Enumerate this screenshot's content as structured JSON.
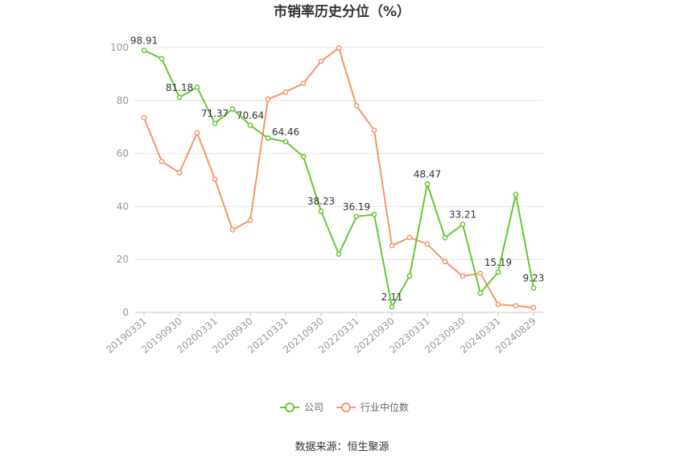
{
  "chart_data": {
    "type": "line",
    "title": "市销率历史分位（%）",
    "xlabel": "",
    "ylabel": "",
    "ylim": [
      0,
      100
    ],
    "yticks": [
      0,
      20,
      40,
      60,
      80,
      100
    ],
    "x": [
      "20190331",
      "20190630",
      "20190930",
      "20191231",
      "20200331",
      "20200630",
      "20200930",
      "20201231",
      "20210331",
      "20210630",
      "20210930",
      "20211231",
      "20220331",
      "20220630",
      "20220930",
      "20221231",
      "20230331",
      "20230630",
      "20230930",
      "20231231",
      "20240331",
      "20240630",
      "20240829"
    ],
    "x_tick_labels": [
      "20190331",
      "20190930",
      "20200331",
      "20200930",
      "20210331",
      "20210930",
      "20220331",
      "20220930",
      "20230331",
      "20230930",
      "20240331",
      "20240829"
    ],
    "series": [
      {
        "name": "公司",
        "color": "#66c735",
        "values": [
          98.91,
          95.8,
          81.18,
          85.0,
          71.37,
          76.8,
          70.64,
          65.8,
          64.46,
          58.8,
          38.23,
          22.0,
          36.19,
          37.0,
          2.11,
          13.8,
          48.47,
          28.2,
          33.21,
          7.3,
          15.19,
          44.5,
          9.23
        ],
        "data_labels": {
          "0": "98.91",
          "2": "81.18",
          "4": "71.37",
          "6": "70.64",
          "8": "64.46",
          "10": "38.23",
          "12": "36.19",
          "14": "2.11",
          "16": "48.47",
          "18": "33.21",
          "20": "15.19",
          "22": "9.23"
        }
      },
      {
        "name": "行业中位数",
        "color": "#f5956a",
        "values": [
          73.5,
          57.0,
          52.8,
          67.8,
          50.3,
          31.2,
          34.8,
          80.5,
          83.2,
          86.5,
          94.8,
          99.8,
          78.0,
          68.8,
          25.2,
          28.3,
          25.8,
          19.2,
          13.7,
          14.8,
          3.0,
          2.5,
          1.8
        ]
      }
    ],
    "legend_position": "bottom-center",
    "grid": true,
    "source": "数据来源：恒生聚源"
  }
}
